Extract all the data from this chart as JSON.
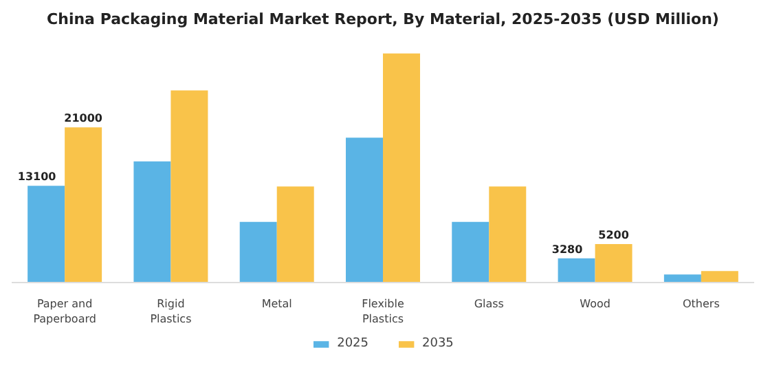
{
  "chart_data": {
    "type": "bar",
    "title": "China Packaging Material Market Report, By Material, 2025-2035 (USD Million)",
    "categories": [
      "Paper and\nPaperboard",
      "Rigid\nPlastics",
      "Metal",
      "Flexible\nPlastics",
      "Glass",
      "Wood",
      "Others"
    ],
    "series": [
      {
        "name": "2025",
        "color": "#5ab4e5",
        "values": [
          13100,
          16400,
          8200,
          19600,
          8200,
          3280,
          1100
        ],
        "value_labels": [
          "13100",
          null,
          null,
          null,
          null,
          "3280",
          null
        ]
      },
      {
        "name": "2035",
        "color": "#f9c34a",
        "values": [
          21000,
          26000,
          13000,
          31000,
          13000,
          5200,
          1550
        ],
        "value_labels": [
          "21000",
          null,
          null,
          null,
          null,
          "5200",
          null
        ]
      }
    ],
    "legend": "bottom"
  }
}
